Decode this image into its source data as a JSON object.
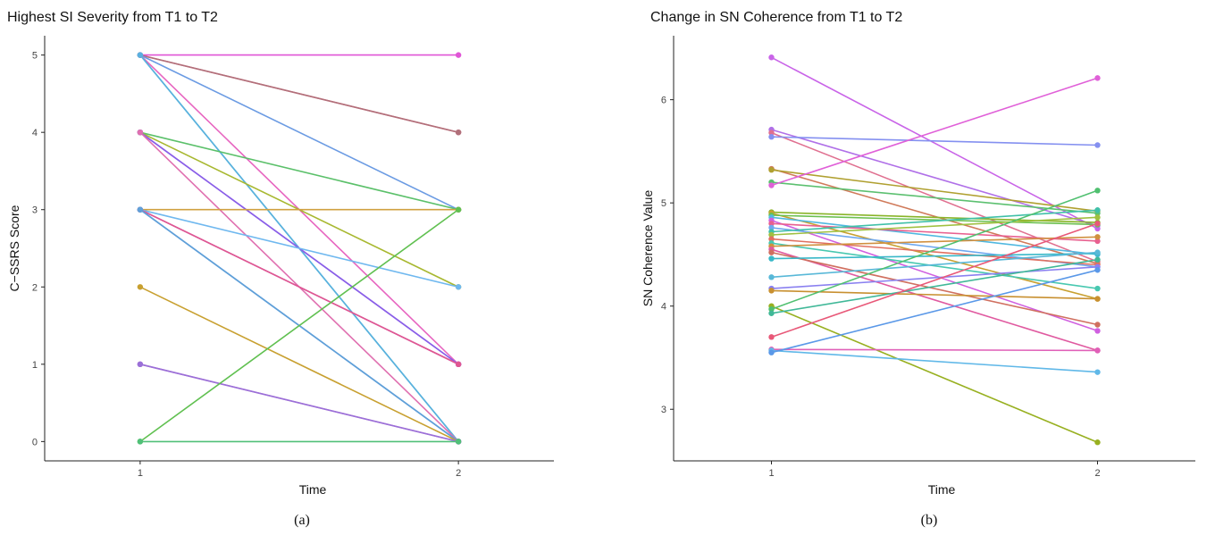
{
  "chart_data": [
    {
      "type": "line",
      "title": "Highest SI Severity from T1 to T2",
      "xlabel": "Time",
      "ylabel": "C−SSRS Score",
      "caption": "(a)",
      "x": [
        1,
        2
      ],
      "xticks": [
        "1",
        "2"
      ],
      "yticks": [
        "0",
        "1",
        "2",
        "3",
        "4",
        "5"
      ],
      "xlim": [
        0.7,
        2.3
      ],
      "ylim": [
        -0.25,
        5.25
      ],
      "grid": false,
      "legend": "none",
      "series": [
        {
          "values": [
            5,
            5
          ],
          "color": "#e055d6"
        },
        {
          "values": [
            5,
            4
          ],
          "color": "#e0607e"
        },
        {
          "values": [
            5,
            4
          ],
          "color": "#b0707a"
        },
        {
          "values": [
            5,
            3
          ],
          "color": "#6b9be3"
        },
        {
          "values": [
            5,
            1
          ],
          "color": "#e765c0"
        },
        {
          "values": [
            5,
            0
          ],
          "color": "#40c0b8"
        },
        {
          "values": [
            5,
            0
          ],
          "color": "#5ab0e0"
        },
        {
          "values": [
            4,
            3
          ],
          "color": "#5bc06a"
        },
        {
          "values": [
            4,
            2
          ],
          "color": "#a8b830"
        },
        {
          "values": [
            4,
            1
          ],
          "color": "#b061e8"
        },
        {
          "values": [
            4,
            1
          ],
          "color": "#8860e8"
        },
        {
          "values": [
            4,
            0
          ],
          "color": "#e070b0"
        },
        {
          "values": [
            3,
            3
          ],
          "color": "#d0a040"
        },
        {
          "values": [
            3,
            2
          ],
          "color": "#6fb8ef"
        },
        {
          "values": [
            3,
            1
          ],
          "color": "#c050c8"
        },
        {
          "values": [
            3,
            1
          ],
          "color": "#e05890"
        },
        {
          "values": [
            3,
            0
          ],
          "color": "#4a90e0"
        },
        {
          "values": [
            3,
            0
          ],
          "color": "#60a0d8"
        },
        {
          "values": [
            2,
            0
          ],
          "color": "#c8a030"
        },
        {
          "values": [
            1,
            0
          ],
          "color": "#c070d0"
        },
        {
          "values": [
            1,
            0
          ],
          "color": "#9a70d8"
        },
        {
          "values": [
            0,
            3
          ],
          "color": "#60c050"
        },
        {
          "values": [
            0,
            0
          ],
          "color": "#50c078"
        }
      ]
    },
    {
      "type": "line",
      "title": "Change in SN Coherence from T1 to T2",
      "xlabel": "Time",
      "ylabel": "SN Coherence Value",
      "caption": "(b)",
      "x": [
        1,
        2
      ],
      "xticks": [
        "1",
        "2"
      ],
      "yticks": [
        "3",
        "4",
        "5",
        "6"
      ],
      "xlim": [
        0.7,
        2.3
      ],
      "ylim": [
        2.5,
        6.62
      ],
      "grid": false,
      "legend": "none",
      "series": [
        {
          "values": [
            6.41,
            4.75
          ],
          "color": "#c964e8"
        },
        {
          "values": [
            5.71,
            4.78
          ],
          "color": "#b070e8"
        },
        {
          "values": [
            5.68,
            4.43
          ],
          "color": "#e07090"
        },
        {
          "values": [
            5.64,
            5.56
          ],
          "color": "#8490f0"
        },
        {
          "values": [
            5.33,
            4.41
          ],
          "color": "#d07a5a"
        },
        {
          "values": [
            5.32,
            4.92
          ],
          "color": "#b0a030"
        },
        {
          "values": [
            5.2,
            4.9
          ],
          "color": "#5cc070"
        },
        {
          "values": [
            5.17,
            6.21
          ],
          "color": "#e060d8"
        },
        {
          "values": [
            4.91,
            4.81
          ],
          "color": "#88b428"
        },
        {
          "values": [
            4.9,
            4.07
          ],
          "color": "#c8a030"
        },
        {
          "values": [
            4.88,
            4.79
          ],
          "color": "#6cc050"
        },
        {
          "values": [
            4.86,
            4.5
          ],
          "color": "#50b8e0"
        },
        {
          "values": [
            4.83,
            3.76
          ],
          "color": "#d060e0"
        },
        {
          "values": [
            4.8,
            4.63
          ],
          "color": "#e86090"
        },
        {
          "values": [
            4.76,
            4.38
          ],
          "color": "#6fa8ef"
        },
        {
          "values": [
            4.72,
            4.93
          ],
          "color": "#40c0a8"
        },
        {
          "values": [
            4.69,
            4.86
          ],
          "color": "#a0c040"
        },
        {
          "values": [
            4.65,
            4.4
          ],
          "color": "#e07060"
        },
        {
          "values": [
            4.61,
            4.17
          ],
          "color": "#48c8b0"
        },
        {
          "values": [
            4.58,
            4.67
          ],
          "color": "#d09040"
        },
        {
          "values": [
            4.55,
            3.57
          ],
          "color": "#e05aa0"
        },
        {
          "values": [
            4.52,
            3.82
          ],
          "color": "#d07060"
        },
        {
          "values": [
            4.46,
            4.51
          ],
          "color": "#38b8c8"
        },
        {
          "values": [
            4.28,
            4.52
          ],
          "color": "#58b8d8"
        },
        {
          "values": [
            4.17,
            4.38
          ],
          "color": "#8a80f0"
        },
        {
          "values": [
            4.15,
            4.07
          ],
          "color": "#c89030"
        },
        {
          "values": [
            4.0,
            2.68
          ],
          "color": "#98b020"
        },
        {
          "values": [
            3.97,
            5.12
          ],
          "color": "#50c070"
        },
        {
          "values": [
            3.93,
            4.45
          ],
          "color": "#40b898"
        },
        {
          "values": [
            3.7,
            4.8
          ],
          "color": "#e85878"
        },
        {
          "values": [
            3.58,
            3.57
          ],
          "color": "#e060b8"
        },
        {
          "values": [
            3.57,
            3.36
          ],
          "color": "#60b8e8"
        },
        {
          "values": [
            3.55,
            4.35
          ],
          "color": "#5a98e8"
        }
      ]
    }
  ]
}
